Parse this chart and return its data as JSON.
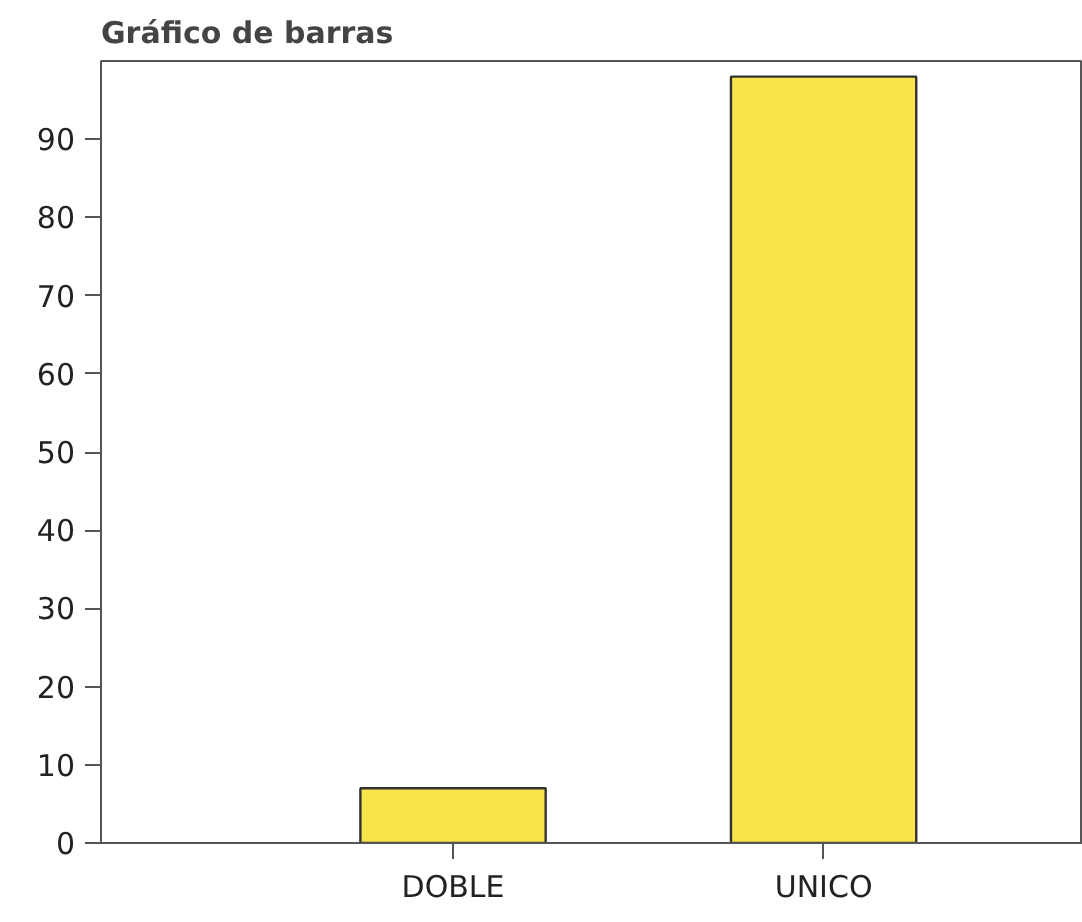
{
  "chart_data": {
    "type": "bar",
    "title": "Gráfico de barras",
    "categories": [
      "DOBLE",
      "UNICO"
    ],
    "values": [
      7,
      98
    ],
    "color": "#fae44b",
    "ylim": [
      0,
      100
    ],
    "yticks": [
      0,
      10,
      20,
      30,
      40,
      50,
      60,
      70,
      80,
      90
    ],
    "grid": false
  }
}
